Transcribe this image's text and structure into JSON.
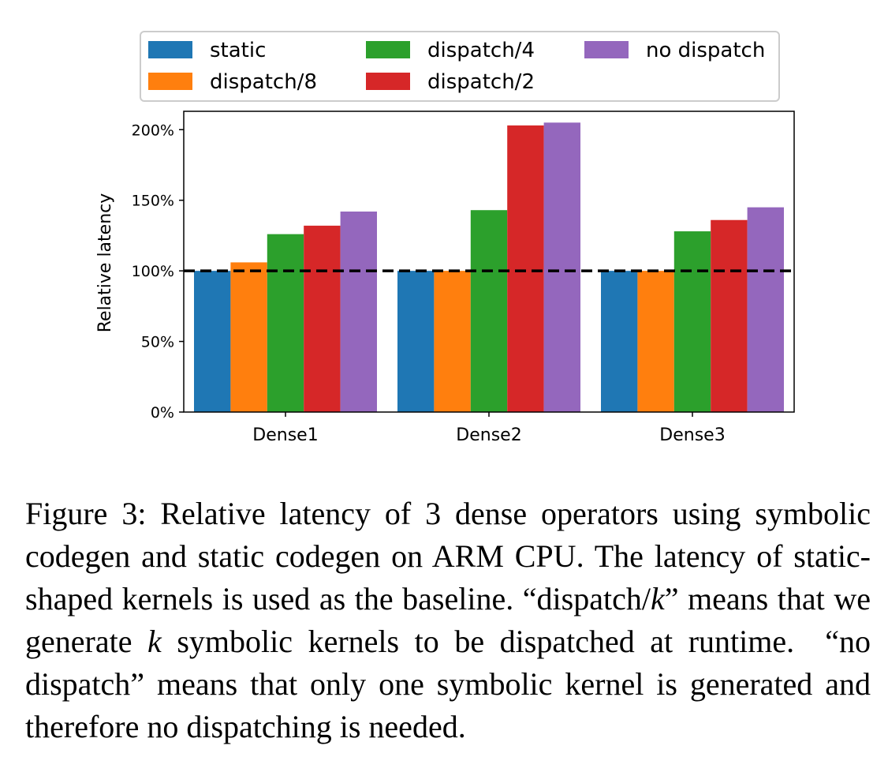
{
  "chart_data": {
    "type": "bar",
    "categories": [
      "Dense1",
      "Dense2",
      "Dense3"
    ],
    "series": [
      {
        "name": "static",
        "color": "#1f77b4",
        "values": [
          100,
          100,
          100
        ]
      },
      {
        "name": "dispatch/8",
        "color": "#ff7f0e",
        "values": [
          106,
          100,
          100
        ]
      },
      {
        "name": "dispatch/4",
        "color": "#2ca02c",
        "values": [
          126,
          143,
          128
        ]
      },
      {
        "name": "dispatch/2",
        "color": "#d62728",
        "values": [
          132,
          203,
          136
        ]
      },
      {
        "name": "no dispatch",
        "color": "#9467bd",
        "values": [
          142,
          205,
          145
        ]
      }
    ],
    "ylabel": "Relative latency",
    "ylim": [
      0,
      213
    ],
    "yticks": [
      0,
      50,
      100,
      150,
      200
    ],
    "ytick_labels": [
      "0%",
      "50%",
      "100%",
      "150%",
      "200%"
    ],
    "baseline": 100,
    "legend_position": "top",
    "grid": false
  },
  "caption": {
    "pre": "Figure 3: Relative latency of 3 dense operators using symbolic codegen and static codegen on ARM CPU. The latency of static-shaped kernels is used as the baseline. “dispatch/",
    "k1": "k",
    "mid": "” means that we generate ",
    "k2": "k",
    "post": " symbolic kernels to be dispatched at runtime.  “no dispatch” means that only one symbolic kernel is generated and therefore no dispatching is needed."
  }
}
